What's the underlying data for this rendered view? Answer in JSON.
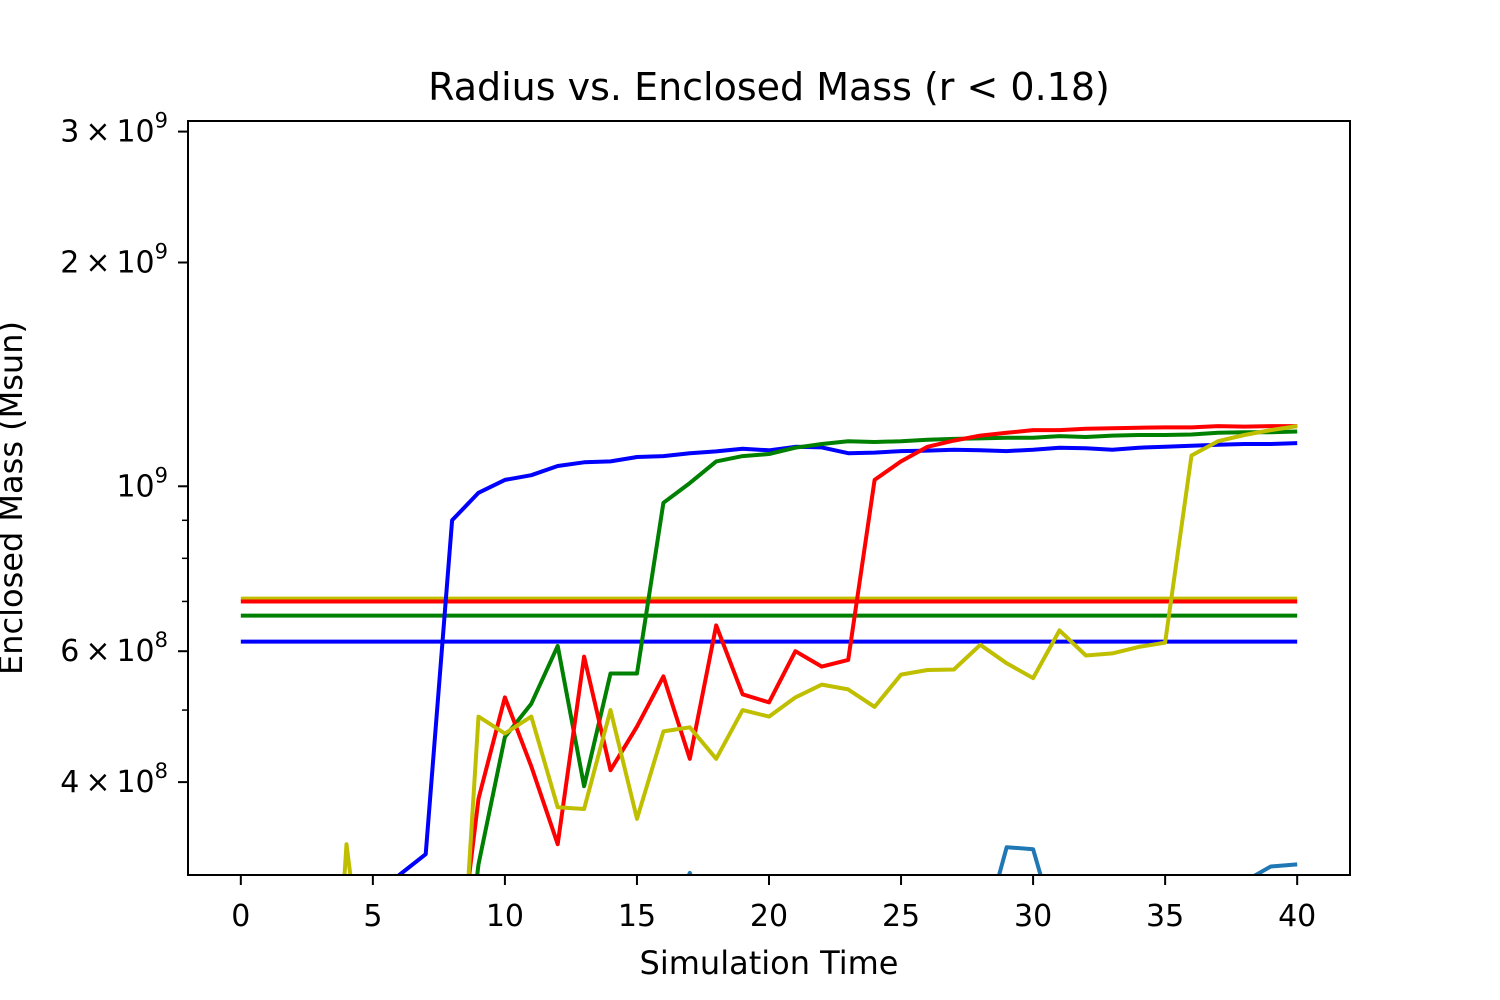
{
  "chart_data": {
    "type": "line",
    "title": "Radius vs. Enclosed Mass (r < 0.18)",
    "xlabel": "Simulation Time",
    "ylabel": "Enclosed Mass (Msun)",
    "xlim": [
      -2,
      42
    ],
    "ylim": [
      300000000,
      3100000000
    ],
    "yscale": "log",
    "grid": false,
    "x_ticks": [
      0,
      5,
      10,
      15,
      20,
      25,
      30,
      35,
      40
    ],
    "x_tick_labels": [
      "0",
      "5",
      "10",
      "15",
      "20",
      "25",
      "30",
      "35",
      "40"
    ],
    "y_major_ticks": [
      {
        "value": 400000000,
        "mantissa": "4",
        "exp": "8"
      },
      {
        "value": 600000000,
        "mantissa": "6",
        "exp": "8"
      },
      {
        "value": 1000000000,
        "mantissa": "",
        "exp": "9"
      },
      {
        "value": 2000000000,
        "mantissa": "2",
        "exp": "9"
      },
      {
        "value": 3000000000,
        "mantissa": "3",
        "exp": "9"
      }
    ],
    "y_minor_ticks": [
      500000000,
      700000000,
      800000000,
      900000000
    ],
    "hlines": [
      {
        "color": "#bfbf00",
        "y": 706000000,
        "x": [
          0,
          40
        ]
      },
      {
        "color": "#ff0000",
        "y": 700000000,
        "x": [
          0,
          40
        ]
      },
      {
        "color": "#008000",
        "y": 670000000,
        "x": [
          0,
          40
        ]
      },
      {
        "color": "#0000ff",
        "y": 618000000,
        "x": [
          0,
          40
        ]
      }
    ],
    "series": [
      {
        "color": "#1f77b4",
        "x": [
          16.8,
          17,
          17.2,
          28.6,
          29,
          30,
          30.4,
          37.6,
          38,
          39,
          40
        ],
        "y": [
          290000000,
          302000000,
          290000000,
          290000000,
          327000000,
          325000000,
          290000000,
          290000000,
          294000000,
          308000000,
          310000000
        ]
      },
      {
        "color": "#0000ff",
        "x": [
          5.9,
          6,
          7,
          8,
          9,
          10,
          11,
          12,
          13,
          14,
          15,
          16,
          17,
          18,
          19,
          20,
          21,
          22,
          23,
          24,
          25,
          26,
          27,
          28,
          29,
          30,
          31,
          32,
          33,
          34,
          35,
          36,
          37,
          38,
          39,
          40
        ],
        "y": [
          295000000,
          300000000,
          320000000,
          900000000,
          980000000,
          1020000000,
          1035000000,
          1065000000,
          1077000000,
          1080000000,
          1095000000,
          1098000000,
          1108000000,
          1114000000,
          1123000000,
          1118000000,
          1130000000,
          1128000000,
          1108000000,
          1110000000,
          1115000000,
          1117000000,
          1120000000,
          1118000000,
          1115000000,
          1120000000,
          1127000000,
          1125000000,
          1120000000,
          1127000000,
          1130000000,
          1134000000,
          1137000000,
          1140000000,
          1140000000,
          1143000000
        ]
      },
      {
        "color": "#008000",
        "x": [
          8.9,
          9,
          10,
          11,
          12,
          13,
          14,
          15,
          16,
          17,
          18,
          19,
          20,
          21,
          22,
          23,
          24,
          25,
          26,
          27,
          28,
          29,
          30,
          31,
          32,
          33,
          34,
          35,
          36,
          37,
          38,
          39,
          40
        ],
        "y": [
          290000000,
          310000000,
          460000000,
          510000000,
          610000000,
          395000000,
          560000000,
          560000000,
          950000000,
          1010000000,
          1080000000,
          1098000000,
          1105000000,
          1127000000,
          1140000000,
          1150000000,
          1147000000,
          1150000000,
          1155000000,
          1158000000,
          1160000000,
          1162000000,
          1162000000,
          1168000000,
          1165000000,
          1170000000,
          1172000000,
          1172000000,
          1174000000,
          1180000000,
          1182000000,
          1182000000,
          1185000000
        ]
      },
      {
        "color": "#ff0000",
        "x": [
          8.6,
          9,
          10,
          11,
          12,
          13,
          14,
          15,
          16,
          17,
          18,
          19,
          20,
          21,
          22,
          23,
          24,
          25,
          26,
          27,
          28,
          29,
          30,
          31,
          32,
          33,
          34,
          35,
          36,
          37,
          38,
          39,
          40
        ],
        "y": [
          290000000,
          380000000,
          520000000,
          420000000,
          330000000,
          590000000,
          415000000,
          475000000,
          555000000,
          430000000,
          650000000,
          525000000,
          512000000,
          600000000,
          572000000,
          584000000,
          1020000000,
          1080000000,
          1130000000,
          1152000000,
          1170000000,
          1180000000,
          1190000000,
          1190000000,
          1195000000,
          1197000000,
          1199000000,
          1200000000,
          1200000000,
          1205000000,
          1203000000,
          1205000000,
          1205000000
        ]
      },
      {
        "color": "#bfbf00",
        "x": [
          3.9,
          4,
          4.2,
          8.6,
          9,
          10,
          11,
          12,
          13,
          14,
          15,
          16,
          17,
          18,
          19,
          20,
          21,
          22,
          23,
          24,
          25,
          26,
          27,
          28,
          29,
          30,
          31,
          32,
          33,
          34,
          35,
          36,
          37,
          38,
          39,
          40
        ],
        "y": [
          290000000,
          330000000,
          290000000,
          290000000,
          490000000,
          465000000,
          490000000,
          370000000,
          368000000,
          500000000,
          357000000,
          468000000,
          474000000,
          430000000,
          500000000,
          490000000,
          520000000,
          541000000,
          533000000,
          505000000,
          558000000,
          566000000,
          567000000,
          612000000,
          578000000,
          552000000,
          640000000,
          592000000,
          596000000,
          608000000,
          616000000,
          1100000000,
          1150000000,
          1172000000,
          1190000000,
          1205000000
        ]
      }
    ]
  }
}
